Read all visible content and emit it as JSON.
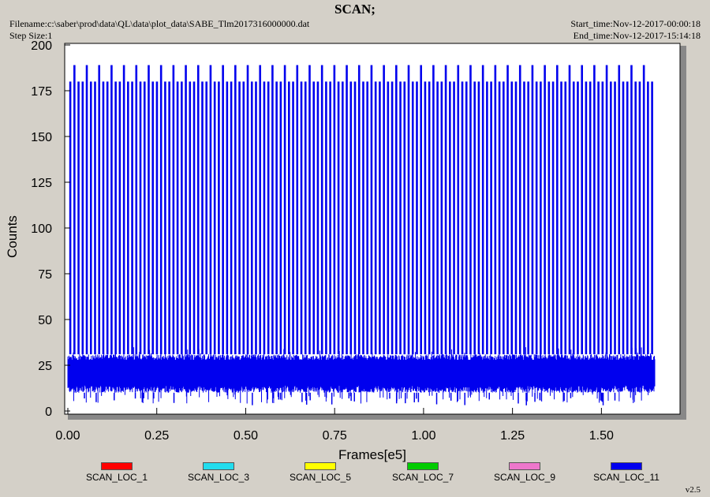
{
  "header": {
    "title": "SCAN;",
    "filename": "Filename:c:\\saber\\prod\\data\\QL\\data\\plot_data\\SABE_Tlm2017316000000.dat",
    "step_size": "Step Size:1",
    "start_time": "Start_time:Nov-12-2017-00:00:18",
    "end_time": "End_time:Nov-12-2017-15:14:18",
    "version": "v2.5"
  },
  "legend": [
    {
      "name": "SCAN_LOC_1",
      "color": "#ff0000"
    },
    {
      "name": "SCAN_LOC_3",
      "color": "#22ddee"
    },
    {
      "name": "SCAN_LOC_5",
      "color": "#ffff00"
    },
    {
      "name": "SCAN_LOC_7",
      "color": "#00cc00"
    },
    {
      "name": "SCAN_LOC_9",
      "color": "#ee77cc"
    },
    {
      "name": "SCAN_LOC_11",
      "color": "#0000ee"
    }
  ],
  "chart_data": {
    "type": "line",
    "title": "SCAN;",
    "xlabel": "Frames[e5]",
    "ylabel": "Counts",
    "xlim": [
      0.0,
      1.75
    ],
    "ylim": [
      0,
      200
    ],
    "x_ticks": [
      "0.00",
      "0.25",
      "0.50",
      "0.75",
      "1.00",
      "1.25",
      "1.50"
    ],
    "y_ticks": [
      "0",
      "25",
      "50",
      "75",
      "100",
      "125",
      "150",
      "175",
      "200"
    ],
    "grid": false,
    "series": [
      {
        "name": "SCAN_LOC_11",
        "color": "#0000ee",
        "x_range": [
          0.0,
          1.65
        ],
        "baseline_band": [
          10,
          31
        ],
        "spike_values": [
          180,
          189
        ],
        "spike_period": 0.0116,
        "tall_spike_every": 3,
        "min_value": 3
      }
    ]
  }
}
